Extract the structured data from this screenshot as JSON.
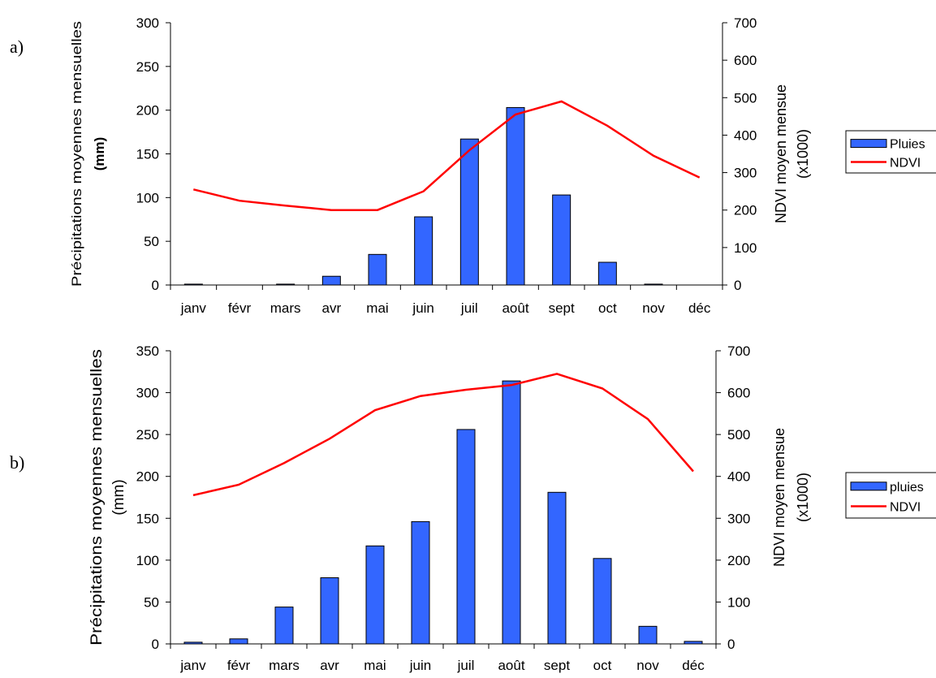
{
  "panel_labels": [
    "a)",
    "b)"
  ],
  "chart_data": [
    {
      "type": "bar",
      "categories": [
        "janv",
        "févr",
        "mars",
        "avr",
        "mai",
        "juin",
        "juil",
        "août",
        "sept",
        "oct",
        "nov",
        "déc"
      ],
      "series": [
        {
          "name": "Pluies",
          "type": "bar",
          "axis": "left",
          "color": "#3366FF",
          "values": [
            1,
            0,
            1,
            10,
            35,
            78,
            167,
            203,
            103,
            26,
            1,
            0
          ]
        },
        {
          "name": "NDVI",
          "type": "line",
          "axis": "right",
          "color": "#FF0000",
          "values": [
            255,
            225,
            212,
            200,
            200,
            250,
            360,
            455,
            490,
            425,
            345,
            287
          ]
        }
      ],
      "ylabel": "Précipitations moyennes mensuelles",
      "ylabel_unit": "(mm)",
      "y2label": "NDVI moyen mensue",
      "y2label_unit": "(x1000)",
      "ylim": [
        0,
        300
      ],
      "yticks": [
        0,
        50,
        100,
        150,
        200,
        250,
        300
      ],
      "y2lim": [
        0,
        700
      ],
      "y2ticks": [
        0,
        100,
        200,
        300,
        400,
        500,
        600,
        700
      ],
      "legend": [
        "Pluies",
        "NDVI"
      ],
      "legend_position": "right",
      "grid": false
    },
    {
      "type": "bar",
      "categories": [
        "janv",
        "févr",
        "mars",
        "avr",
        "mai",
        "juin",
        "juil",
        "août",
        "sept",
        "oct",
        "nov",
        "déc"
      ],
      "series": [
        {
          "name": "pluies",
          "type": "bar",
          "axis": "left",
          "color": "#3366FF",
          "values": [
            2,
            6,
            44,
            79,
            117,
            146,
            256,
            314,
            181,
            102,
            21,
            3
          ]
        },
        {
          "name": "NDVI",
          "type": "line",
          "axis": "right",
          "color": "#FF0000",
          "values": [
            355,
            380,
            432,
            490,
            558,
            592,
            607,
            618,
            645,
            610,
            537,
            412
          ]
        }
      ],
      "ylabel": "Précipitations moyennes mensuelles",
      "ylabel_unit": "(mm)",
      "y2label": "NDVI moyen mensue",
      "y2label_unit": "(x1000)",
      "ylim": [
        0,
        350
      ],
      "yticks": [
        0,
        50,
        100,
        150,
        200,
        250,
        300,
        350
      ],
      "y2lim": [
        0,
        700
      ],
      "y2ticks": [
        0,
        100,
        200,
        300,
        400,
        500,
        600,
        700
      ],
      "legend": [
        "pluies",
        "NDVI"
      ],
      "legend_position": "right",
      "grid": false
    }
  ]
}
